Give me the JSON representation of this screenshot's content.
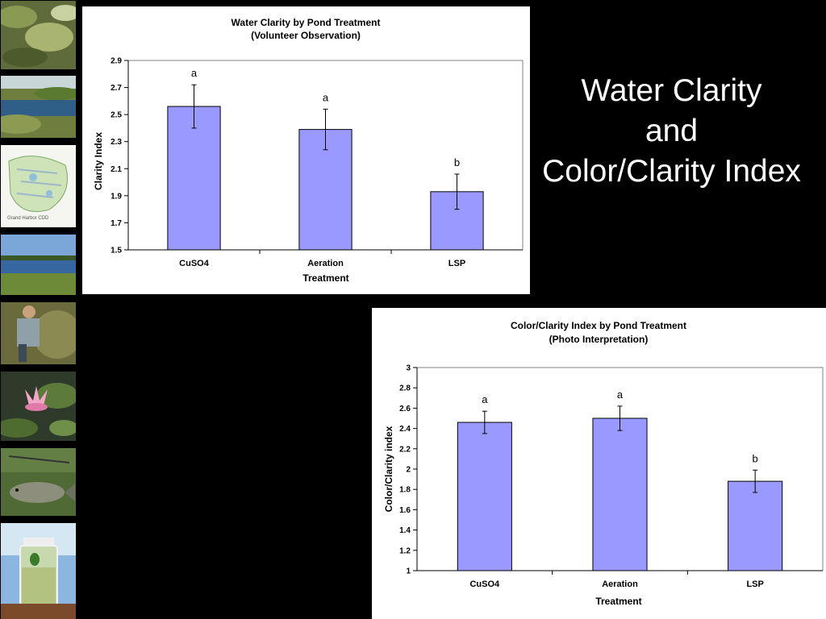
{
  "slide": {
    "title_lines": [
      "Water Clarity",
      "and",
      "Color/Clarity Index"
    ]
  },
  "thumbnails": [
    {
      "name": "algae-pond-photo"
    },
    {
      "name": "pond-shoreline-photo"
    },
    {
      "name": "community-site-map",
      "caption": "Grand Harbor CDD"
    },
    {
      "name": "lake-reeds-photo"
    },
    {
      "name": "volunteer-sampling-photo"
    },
    {
      "name": "water-lily-photo"
    },
    {
      "name": "bass-fish-photo"
    },
    {
      "name": "water-sample-jar-photo"
    }
  ],
  "colors": {
    "bar_fill": "#9999FF",
    "bar_stroke": "#000000",
    "plot_border": "#808080"
  },
  "chart_data": [
    {
      "type": "bar",
      "title": "Water Clarity by Pond Treatment",
      "subtitle": "(Volunteer Observation)",
      "xlabel": "Treatment",
      "ylabel": "Clarity Index",
      "categories": [
        "CuSO4",
        "Aeration",
        "LSP"
      ],
      "values": [
        2.56,
        2.39,
        1.93
      ],
      "error": [
        0.16,
        0.15,
        0.13
      ],
      "significance_labels": [
        "a",
        "a",
        "b"
      ],
      "ylim": [
        1.5,
        2.9
      ],
      "yticks": [
        "1.5",
        "1.7",
        "1.9",
        "2.1",
        "2.3",
        "2.5",
        "2.7",
        "2.9"
      ],
      "grid": false,
      "legend": "none"
    },
    {
      "type": "bar",
      "title": "Color/Clarity Index by Pond Treatment",
      "subtitle": "(Photo Interpretation)",
      "xlabel": "Treatment",
      "ylabel": "Color/Clarity index",
      "categories": [
        "CuSO4",
        "Aeration",
        "LSP"
      ],
      "values": [
        2.46,
        2.5,
        1.88
      ],
      "error": [
        0.11,
        0.12,
        0.11
      ],
      "significance_labels": [
        "a",
        "a",
        "b"
      ],
      "ylim": [
        1,
        3
      ],
      "yticks": [
        "1",
        "1.2",
        "1.4",
        "1.6",
        "1.8",
        "2",
        "2.2",
        "2.4",
        "2.6",
        "2.8",
        "3"
      ],
      "grid": false,
      "legend": "none"
    }
  ]
}
